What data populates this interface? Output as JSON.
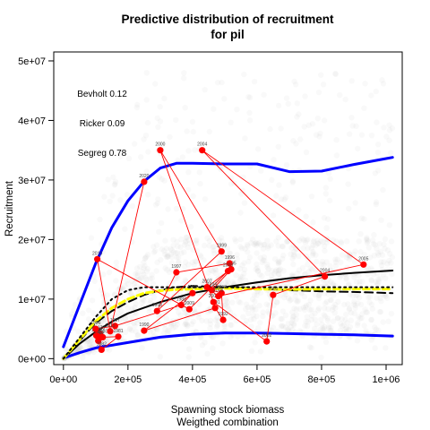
{
  "chart_data": {
    "type": "scatter",
    "title_line1": "Predictive distribution of recruitment",
    "title_line2": "for pil",
    "xlabel_line1": "Spawning stock biomass",
    "xlabel_line2": "Weigthed combination",
    "ylabel": "Recruitment",
    "xlim": [
      -30000,
      1050000
    ],
    "ylim": [
      -1000000,
      51500000
    ],
    "x_ticks": [
      {
        "value": 0,
        "label": "0e+00"
      },
      {
        "value": 200000,
        "label": "2e+05"
      },
      {
        "value": 400000,
        "label": "4e+05"
      },
      {
        "value": 600000,
        "label": "6e+05"
      },
      {
        "value": 800000,
        "label": "8e+05"
      },
      {
        "value": 1000000,
        "label": "1e+06"
      }
    ],
    "y_ticks": [
      {
        "value": 0,
        "label": "0e+00"
      },
      {
        "value": 10000000,
        "label": "1e+07"
      },
      {
        "value": 20000000,
        "label": "2e+07"
      },
      {
        "value": 30000000,
        "label": "3e+07"
      },
      {
        "value": 40000000,
        "label": "4e+07"
      },
      {
        "value": 50000000,
        "label": "5e+07"
      }
    ],
    "model_weights": [
      {
        "label": "Bevholt 0.12"
      },
      {
        "label": "Ricker 0.09"
      },
      {
        "label": "Segreg 0.78"
      }
    ],
    "observations": [
      {
        "year": "1978",
        "x": 113000,
        "y": 4200000
      },
      {
        "year": "1979",
        "x": 108000,
        "y": 3000000
      },
      {
        "year": "1980",
        "x": 122000,
        "y": 3600000
      },
      {
        "year": "1981",
        "x": 170000,
        "y": 3700000
      },
      {
        "year": "1982",
        "x": 118000,
        "y": 1500000
      },
      {
        "year": "1983",
        "x": 102000,
        "y": 3900000
      },
      {
        "year": "1984",
        "x": 110000,
        "y": 3400000
      },
      {
        "year": "1985",
        "x": 105000,
        "y": 3800000
      },
      {
        "year": "1986",
        "x": 100000,
        "y": 5000000
      },
      {
        "year": "1987",
        "x": 160000,
        "y": 5500000
      },
      {
        "year": "1988",
        "x": 365000,
        "y": 9000000
      },
      {
        "year": "1989",
        "x": 400000,
        "y": 11000000
      },
      {
        "year": "1990",
        "x": 250000,
        "y": 4700000
      },
      {
        "year": "1991",
        "x": 470000,
        "y": 8500000
      },
      {
        "year": "1992",
        "x": 495000,
        "y": 6500000
      },
      {
        "year": "1993",
        "x": 490000,
        "y": 11000000
      },
      {
        "year": "1994",
        "x": 460000,
        "y": 11500000
      },
      {
        "year": "1995",
        "x": 520000,
        "y": 15000000
      },
      {
        "year": "1996",
        "x": 515000,
        "y": 16000000
      },
      {
        "year": "1997",
        "x": 350000,
        "y": 14500000
      },
      {
        "year": "1998",
        "x": 290000,
        "y": 8000000
      },
      {
        "year": "1999",
        "x": 490000,
        "y": 18000000
      },
      {
        "year": "2000",
        "x": 300000,
        "y": 35000000
      },
      {
        "year": "2001",
        "x": 465000,
        "y": 9500000
      },
      {
        "year": "2002",
        "x": 630000,
        "y": 2900000
      },
      {
        "year": "2003",
        "x": 650000,
        "y": 10700000
      },
      {
        "year": "2004",
        "x": 810000,
        "y": 13800000
      },
      {
        "year": "2004",
        "x": 430000,
        "y": 35000000
      },
      {
        "year": "2005",
        "x": 930000,
        "y": 15800000
      },
      {
        "year": "2006",
        "x": 480000,
        "y": 10500000
      },
      {
        "year": "2007",
        "x": 445000,
        "y": 12000000
      },
      {
        "year": "2008",
        "x": 510000,
        "y": 14700000
      },
      {
        "year": "2009",
        "x": 390000,
        "y": 8300000
      },
      {
        "year": "2010",
        "x": 105000,
        "y": 16700000
      },
      {
        "year": "2011",
        "x": 145000,
        "y": 4600000
      },
      {
        "year": "2020",
        "x": 250000,
        "y": 29700000
      }
    ],
    "series": [
      {
        "name": "",
        "color": "#0000ff",
        "style": "solid",
        "x": [
          0,
          50000,
          100000,
          150000,
          200000,
          250000,
          300000,
          350000,
          400000,
          500000,
          600000,
          700000,
          800000,
          900000,
          1000000,
          1020000
        ],
        "y": [
          2000000,
          9000000,
          16000000,
          22000000,
          26500000,
          29800000,
          32000000,
          32800000,
          32800000,
          32700000,
          32700000,
          31400000,
          31500000,
          32600000,
          33600000,
          33800000
        ]
      },
      {
        "name": "",
        "color": "#0000ff",
        "style": "solid",
        "x": [
          0,
          50000,
          100000,
          200000,
          300000,
          400000,
          500000,
          600000,
          700000,
          800000,
          900000,
          1020000
        ],
        "y": [
          100000,
          1000000,
          1800000,
          2700000,
          3600000,
          4100000,
          4300000,
          4300000,
          4200000,
          4100000,
          4000000,
          3800000
        ]
      },
      {
        "name": "",
        "color": "#000000",
        "style": "solid",
        "x": [
          0,
          50000,
          100000,
          150000,
          200000,
          300000,
          400000,
          500000,
          600000,
          700000,
          800000,
          900000,
          1020000
        ],
        "y": [
          0,
          2500000,
          4500000,
          6200000,
          7600000,
          9500000,
          11000000,
          12000000,
          12800000,
          13500000,
          14000000,
          14400000,
          14800000
        ]
      },
      {
        "name": "",
        "color": "#000000",
        "style": "dashed",
        "x": [
          0,
          50000,
          100000,
          150000,
          200000,
          250000,
          300000,
          350000,
          400000,
          500000,
          600000,
          700000,
          800000,
          900000,
          1020000
        ],
        "y": [
          0,
          3000000,
          6000000,
          8000000,
          9500000,
          10700000,
          11500000,
          12000000,
          12200000,
          12000000,
          11800000,
          11500000,
          11300000,
          11200000,
          11000000
        ]
      },
      {
        "name": "",
        "color": "#ffff00",
        "style": "solid",
        "x": [
          0,
          50000,
          100000,
          150000,
          200000,
          250000,
          300000,
          350000,
          400000,
          500000,
          600000,
          700000,
          800000,
          900000,
          1020000
        ],
        "y": [
          0,
          3200000,
          6300000,
          8500000,
          10000000,
          11000000,
          11400000,
          11600000,
          11700000,
          11800000,
          11700000,
          11600000,
          11700000,
          11700000,
          11700000
        ]
      },
      {
        "name": "",
        "color": "#000000",
        "style": "dotted",
        "x": [
          0,
          50000,
          100000,
          150000,
          200000,
          250000,
          300000,
          350000,
          400000,
          500000,
          600000,
          700000,
          800000,
          900000,
          1020000
        ],
        "y": [
          0,
          3500000,
          7000000,
          10000000,
          11500000,
          12000000,
          12000000,
          12000000,
          12000000,
          12000000,
          12000000,
          12000000,
          12000000,
          12000000,
          12000000
        ]
      }
    ],
    "legend": "none",
    "grid": false
  }
}
